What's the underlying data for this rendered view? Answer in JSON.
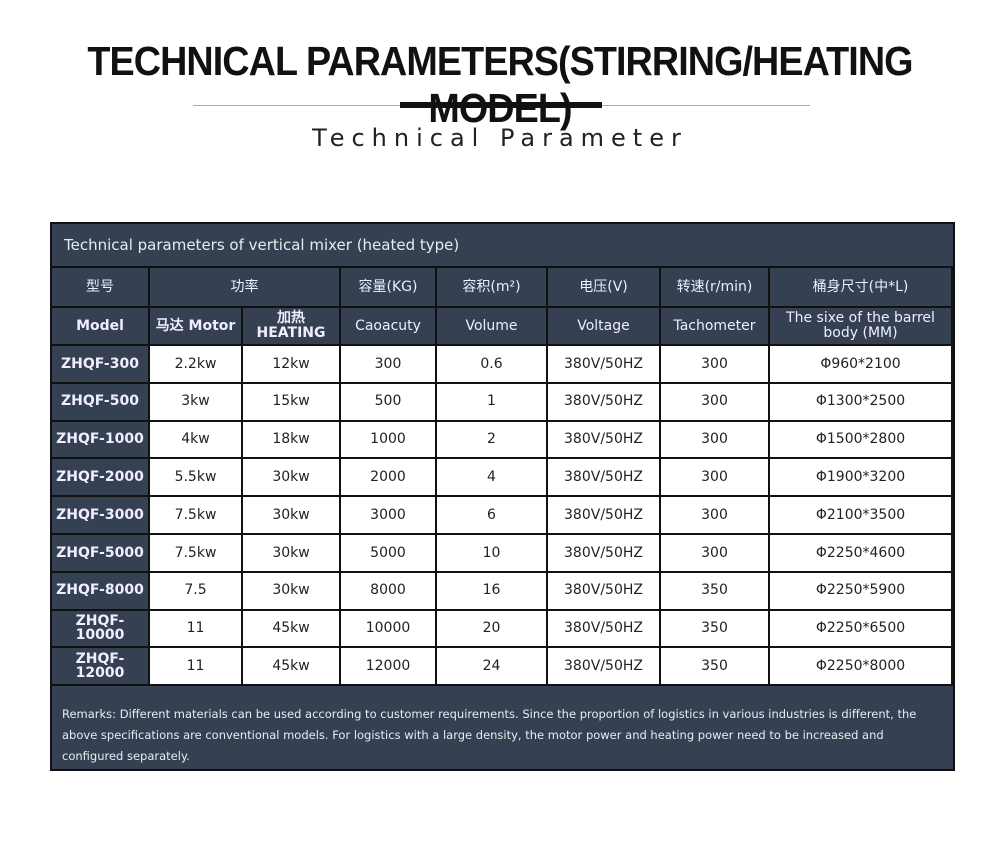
{
  "title": "TECHNICAL PARAMETERS(STIRRING/HEATING MODEL)",
  "subtitle": "Technical Parameter",
  "table": {
    "caption": "Technical parameters of vertical mixer (heated type)",
    "header_cn": [
      "型号",
      "功率",
      "容量(KG)",
      "容积(m²)",
      "电压(V)",
      "转速(r/min)",
      "桶身尺寸(中*L)"
    ],
    "header_en": [
      "Model",
      "马达 Motor",
      "加热HEATING",
      "Caoacuty",
      "Volume",
      "Voltage",
      "Tachometer",
      "The sixe of the barrel body (MM)"
    ],
    "rows": [
      [
        "ZHQF-300",
        "2.2kw",
        "12kw",
        "300",
        "0.6",
        "380V/50HZ",
        "300",
        "Φ960*2100"
      ],
      [
        "ZHQF-500",
        "3kw",
        "15kw",
        "500",
        "1",
        "380V/50HZ",
        "300",
        "Φ1300*2500"
      ],
      [
        "ZHQF-1000",
        "4kw",
        "18kw",
        "1000",
        "2",
        "380V/50HZ",
        "300",
        "Φ1500*2800"
      ],
      [
        "ZHQF-2000",
        "5.5kw",
        "30kw",
        "2000",
        "4",
        "380V/50HZ",
        "300",
        "Φ1900*3200"
      ],
      [
        "ZHQF-3000",
        "7.5kw",
        "30kw",
        "3000",
        "6",
        "380V/50HZ",
        "300",
        "Φ2100*3500"
      ],
      [
        "ZHQF-5000",
        "7.5kw",
        "30kw",
        "5000",
        "10",
        "380V/50HZ",
        "300",
        "Φ2250*4600"
      ],
      [
        "ZHQF-8000",
        "7.5",
        "30kw",
        "8000",
        "16",
        "380V/50HZ",
        "350",
        "Φ2250*5900"
      ],
      [
        "ZHQF-10000",
        "11",
        "45kw",
        "10000",
        "20",
        "380V/50HZ",
        "350",
        "Φ2250*6500"
      ],
      [
        "ZHQF-12000",
        "11",
        "45kw",
        "12000",
        "24",
        "380V/50HZ",
        "350",
        "Φ2250*8000"
      ]
    ],
    "remarks": "Remarks: Different materials can be used according to customer requirements. Since the proportion of logistics in various industries is different, the above specifications are conventional models. For logistics with a large density, the motor power and heating power need to be increased and configured separately."
  }
}
